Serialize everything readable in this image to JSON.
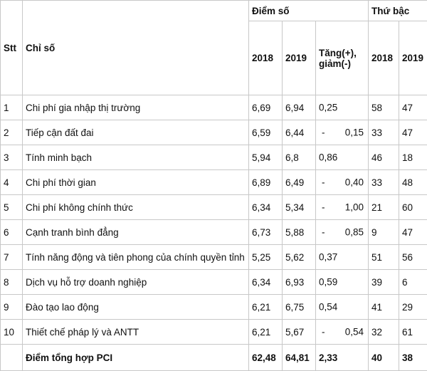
{
  "headers": {
    "stt": "Stt",
    "chi_so": "Chỉ số",
    "diem_so": "Điểm số",
    "thu_bac": "Thứ bậc",
    "y2018": "2018",
    "y2019": "2019",
    "tang_giam_line1": "Tăng(+),",
    "tang_giam_line2": "giảm(-)"
  },
  "rows": [
    {
      "stt": "1",
      "name": "Chi phí gia nhập thị trường",
      "d2018": "6,69",
      "d2019": "6,94",
      "sign": "",
      "change": "0,25",
      "r2018": "58",
      "r2019": "47"
    },
    {
      "stt": "2",
      "name": "Tiếp cận đất đai",
      "d2018": "6,59",
      "d2019": "6,44",
      "sign": "-",
      "change": "0,15",
      "r2018": "33",
      "r2019": "47"
    },
    {
      "stt": "3",
      "name": "Tính minh bạch",
      "d2018": "5,94",
      "d2019": "6,8",
      "sign": "",
      "change": "0,86",
      "r2018": "46",
      "r2019": "18"
    },
    {
      "stt": "4",
      "name": "Chi phí thời gian",
      "d2018": "6,89",
      "d2019": "6,49",
      "sign": "-",
      "change": "0,40",
      "r2018": "33",
      "r2019": "48"
    },
    {
      "stt": "5",
      "name": "Chi phí không chính thức",
      "d2018": "6,34",
      "d2019": "5,34",
      "sign": "-",
      "change": "1,00",
      "r2018": "21",
      "r2019": "60"
    },
    {
      "stt": "6",
      "name": "Cạnh tranh bình đẳng",
      "d2018": "6,73",
      "d2019": "5,88",
      "sign": "-",
      "change": "0,85",
      "r2018": "9",
      "r2019": "47"
    },
    {
      "stt": "7",
      "name": "Tính năng động và tiên phong của chính quyền tỉnh",
      "d2018": "5,25",
      "d2019": "5,62",
      "sign": "",
      "change": "0,37",
      "r2018": "51",
      "r2019": "56"
    },
    {
      "stt": "8",
      "name": "Dịch vụ hỗ trợ doanh nghiệp",
      "d2018": "6,34",
      "d2019": "6,93",
      "sign": "",
      "change": "0,59",
      "r2018": "39",
      "r2019": "6"
    },
    {
      "stt": "9",
      "name": "Đào tạo lao động",
      "d2018": "6,21",
      "d2019": "6,75",
      "sign": "",
      "change": "0,54",
      "r2018": "41",
      "r2019": "29"
    },
    {
      "stt": "10",
      "name": "Thiết chế pháp lý và ANTT",
      "d2018": "6,21",
      "d2019": "5,67",
      "sign": "-",
      "change": "0,54",
      "r2018": "32",
      "r2019": "61"
    }
  ],
  "total": {
    "label": "Điểm tổng hợp PCI",
    "d2018": "62,48",
    "d2019": "64,81",
    "change": "2,33",
    "r2018": "40",
    "r2019": "38"
  }
}
